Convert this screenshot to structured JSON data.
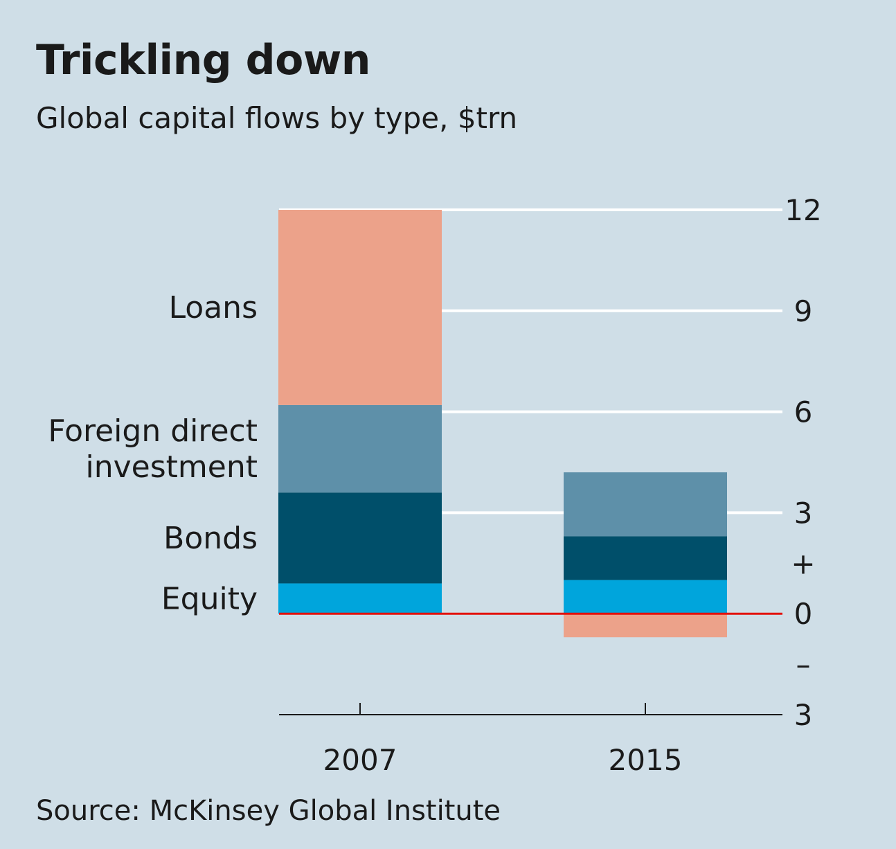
{
  "title": "Trickling down",
  "subtitle": "Global capital flows by type, $trn",
  "source": "Source: McKinsey Global Institute",
  "colors": {
    "background": "#cfdee7",
    "gridline": "#ffffff",
    "zero_line": "#e3120b",
    "axis_line": "#1a1a1a"
  },
  "chart_data": {
    "type": "bar",
    "stacked": true,
    "categories": [
      "2007",
      "2015"
    ],
    "series": [
      {
        "name": "Equity",
        "color": "#00a5dc",
        "values": [
          0.9,
          1.0
        ]
      },
      {
        "name": "Bonds",
        "color": "#004f6a",
        "values": [
          2.7,
          1.3
        ]
      },
      {
        "name": "Foreign direct investment",
        "color": "#5e90a9",
        "values": [
          2.6,
          1.9
        ]
      },
      {
        "name": "Loans",
        "color": "#eca28a",
        "values": [
          5.8,
          -0.7
        ]
      }
    ],
    "ylim": [
      -3,
      12
    ],
    "y_ticks": [
      {
        "value": 12,
        "label": "12"
      },
      {
        "value": 9,
        "label": "9"
      },
      {
        "value": 6,
        "label": "6"
      },
      {
        "value": 3,
        "label": "3"
      },
      {
        "value": 1.5,
        "label": "+"
      },
      {
        "value": 0,
        "label": "0"
      },
      {
        "value": -1.5,
        "label": "–"
      },
      {
        "value": -3,
        "label": "3"
      }
    ],
    "y_axis_position": "right",
    "grid": true,
    "legend": "labels to the left of first bar"
  }
}
